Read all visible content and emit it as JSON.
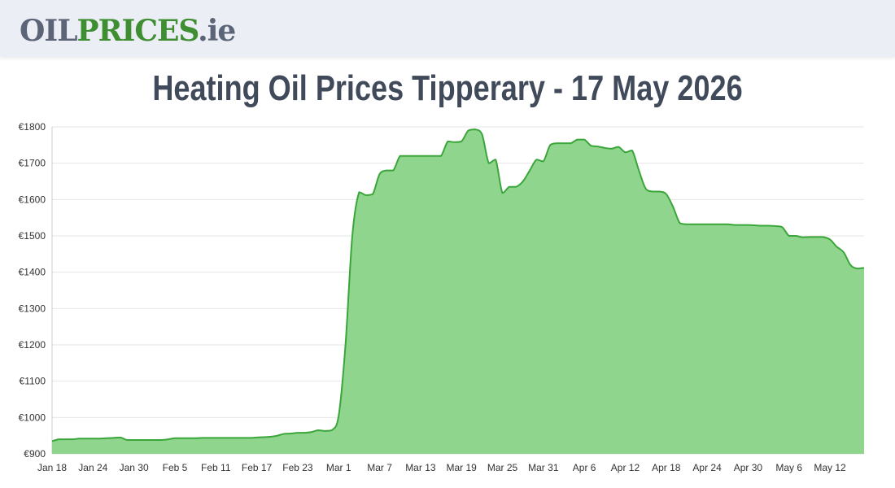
{
  "header": {
    "logo_part1": "OIL",
    "logo_part2": "PRICES",
    "logo_part3": ".ie"
  },
  "colors": {
    "header_bg": "#eceef5",
    "logo_gray": "#5b6577",
    "logo_green": "#3f8f32",
    "area_fill": "#90d58e",
    "line": "#3aa63a",
    "grid": "#e6e6e6"
  },
  "chart_data": {
    "type": "area",
    "title": "Heating Oil Prices Tipperary - 17 May 2026",
    "xlabel": "",
    "ylabel": "",
    "ylim": [
      900,
      1800
    ],
    "y_ticks": [
      900,
      1000,
      1100,
      1200,
      1300,
      1400,
      1500,
      1600,
      1700,
      1800
    ],
    "y_prefix": "€",
    "x_ticks": [
      "Jan 18",
      "Jan 24",
      "Jan 30",
      "Feb 5",
      "Feb 11",
      "Feb 17",
      "Feb 23",
      "Mar 1",
      "Mar 7",
      "Mar 13",
      "Mar 19",
      "Mar 25",
      "Mar 31",
      "Apr 6",
      "Apr 12",
      "Apr 18",
      "Apr 24",
      "Apr 30",
      "May 6",
      "May 12"
    ],
    "grid": true,
    "legend": "none",
    "series": [
      {
        "x": [
          "Jan 18",
          "Jan 19",
          "Jan 20",
          "Jan 21",
          "Jan 22",
          "Jan 23",
          "Jan 24",
          "Jan 25",
          "Jan 26",
          "Jan 27",
          "Jan 28",
          "Jan 29",
          "Jan 30",
          "Jan 31",
          "Feb 1",
          "Feb 2",
          "Feb 3",
          "Feb 4",
          "Feb 5",
          "Feb 6",
          "Feb 7",
          "Feb 8",
          "Feb 9",
          "Feb 10",
          "Feb 11",
          "Feb 12",
          "Feb 13",
          "Feb 14",
          "Feb 15",
          "Feb 16",
          "Feb 17",
          "Feb 18",
          "Feb 19",
          "Feb 20",
          "Feb 21",
          "Feb 22",
          "Feb 23",
          "Feb 24",
          "Feb 25",
          "Feb 26",
          "Feb 27",
          "Feb 28",
          "Mar 1",
          "Mar 2",
          "Mar 3",
          "Mar 4",
          "Mar 5",
          "Mar 6",
          "Mar 7",
          "Mar 8",
          "Mar 9",
          "Mar 10",
          "Mar 11",
          "Mar 12",
          "Mar 13",
          "Mar 14",
          "Mar 15",
          "Mar 16",
          "Mar 17",
          "Mar 18",
          "Mar 19",
          "Mar 20",
          "Mar 21",
          "Mar 22",
          "Mar 23",
          "Mar 24",
          "Mar 25",
          "Mar 26",
          "Mar 27",
          "Mar 28",
          "Mar 29",
          "Mar 30",
          "Mar 31",
          "Apr 1",
          "Apr 2",
          "Apr 3",
          "Apr 4",
          "Apr 5",
          "Apr 6",
          "Apr 7",
          "Apr 8",
          "Apr 9",
          "Apr 10",
          "Apr 11",
          "Apr 12",
          "Apr 13",
          "Apr 14",
          "Apr 15",
          "Apr 16",
          "Apr 17",
          "Apr 18",
          "Apr 19",
          "Apr 20",
          "Apr 21",
          "Apr 22",
          "Apr 23",
          "Apr 24",
          "Apr 25",
          "Apr 26",
          "Apr 27",
          "Apr 28",
          "Apr 29",
          "Apr 30",
          "May 1",
          "May 2",
          "May 3",
          "May 4",
          "May 5",
          "May 6",
          "May 7",
          "May 8",
          "May 9",
          "May 10",
          "May 11",
          "May 12",
          "May 13",
          "May 14",
          "May 15",
          "May 16",
          "May 17"
        ],
        "values": [
          935,
          940,
          940,
          940,
          942,
          942,
          942,
          942,
          943,
          944,
          945,
          938,
          938,
          938,
          938,
          938,
          938,
          940,
          943,
          943,
          943,
          943,
          944,
          944,
          944,
          944,
          944,
          944,
          944,
          944,
          945,
          946,
          947,
          950,
          955,
          956,
          958,
          958,
          960,
          965,
          963,
          965,
          1005,
          1200,
          1500,
          1620,
          1612,
          1615,
          1670,
          1680,
          1680,
          1720,
          1720,
          1720,
          1720,
          1720,
          1720,
          1720,
          1760,
          1758,
          1760,
          1790,
          1793,
          1780,
          1700,
          1710,
          1618,
          1635,
          1635,
          1650,
          1680,
          1710,
          1705,
          1750,
          1755,
          1755,
          1755,
          1765,
          1765,
          1748,
          1746,
          1742,
          1740,
          1745,
          1730,
          1735,
          1680,
          1630,
          1622,
          1622,
          1615,
          1580,
          1535,
          1532,
          1532,
          1532,
          1532,
          1532,
          1532,
          1532,
          1530,
          1530,
          1530,
          1529,
          1528,
          1528,
          1527,
          1524,
          1500,
          1500,
          1496,
          1497,
          1497,
          1497,
          1490,
          1470,
          1455,
          1420,
          1410,
          1412
        ]
      }
    ]
  }
}
